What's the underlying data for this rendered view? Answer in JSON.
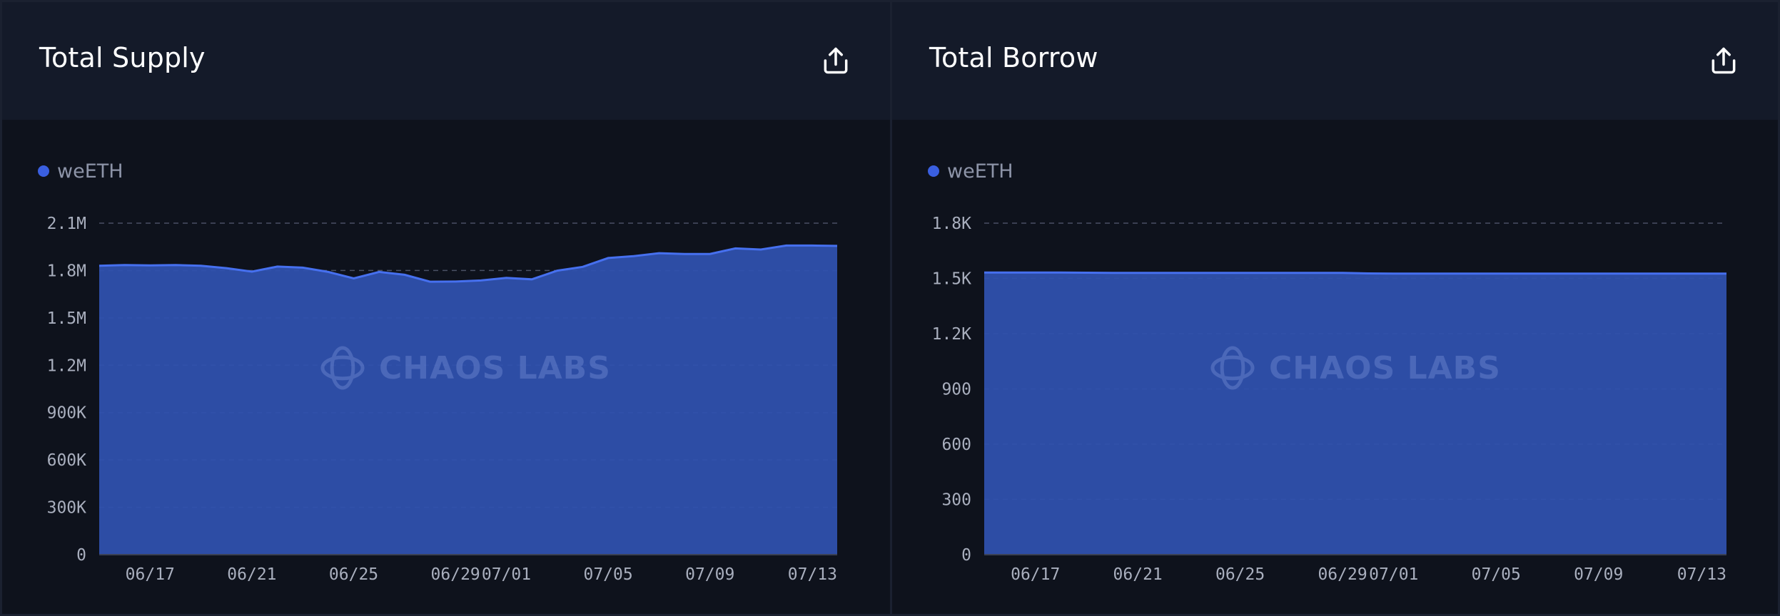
{
  "colors": {
    "fill": "#2f52af",
    "line": "#4670ef",
    "grid": "#4a5064",
    "legend_dot": "#3a5fe0"
  },
  "icons": {
    "export": "share-export-icon",
    "watermark": "chaos-labs-logo-icon"
  },
  "watermark": "CHAOS LABS",
  "chart_data": [
    {
      "type": "area",
      "title": "Total Supply",
      "legend": [
        "weETH"
      ],
      "x_tick_labels": [
        "06/17",
        "06/21",
        "06/25",
        "06/29",
        "07/01",
        "07/05",
        "07/09",
        "07/13"
      ],
      "y_tick_labels": [
        "0",
        "300K",
        "600K",
        "900K",
        "1.2M",
        "1.5M",
        "1.8M",
        "2.1M"
      ],
      "ylim": [
        0,
        2100000
      ],
      "x_range": [
        "06/15",
        "07/14"
      ],
      "grid": true,
      "legend_position": "top-left",
      "series": [
        {
          "name": "weETH",
          "x": [
            "06/15",
            "06/16",
            "06/17",
            "06/18",
            "06/19",
            "06/20",
            "06/21",
            "06/22",
            "06/23",
            "06/24",
            "06/25",
            "06/26",
            "06/27",
            "06/28",
            "06/29",
            "06/30",
            "07/01",
            "07/02",
            "07/03",
            "07/04",
            "07/05",
            "07/06",
            "07/07",
            "07/08",
            "07/09",
            "07/10",
            "07/11",
            "07/12",
            "07/13",
            "07/14"
          ],
          "values": [
            1830000,
            1835000,
            1832000,
            1835000,
            1830000,
            1815000,
            1793000,
            1825000,
            1818000,
            1791000,
            1750000,
            1791000,
            1773000,
            1729000,
            1730000,
            1737000,
            1753000,
            1744000,
            1799000,
            1823000,
            1879000,
            1891000,
            1910000,
            1905000,
            1905000,
            1940000,
            1933000,
            1958000,
            1958000,
            1956000
          ]
        }
      ]
    },
    {
      "type": "area",
      "title": "Total Borrow",
      "legend": [
        "weETH"
      ],
      "x_tick_labels": [
        "06/17",
        "06/21",
        "06/25",
        "06/29",
        "07/01",
        "07/05",
        "07/09",
        "07/13"
      ],
      "y_tick_labels": [
        "0",
        "300",
        "600",
        "900",
        "1.2K",
        "1.5K",
        "1.8K"
      ],
      "ylim": [
        0,
        1800
      ],
      "x_range": [
        "06/15",
        "07/14"
      ],
      "grid": true,
      "legend_position": "top-left",
      "series": [
        {
          "name": "weETH",
          "x": [
            "06/15",
            "06/16",
            "06/17",
            "06/18",
            "06/19",
            "06/20",
            "06/21",
            "06/22",
            "06/23",
            "06/24",
            "06/25",
            "06/26",
            "06/27",
            "06/28",
            "06/29",
            "06/30",
            "07/01",
            "07/02",
            "07/03",
            "07/04",
            "07/05",
            "07/06",
            "07/07",
            "07/08",
            "07/09",
            "07/10",
            "07/11",
            "07/12",
            "07/13",
            "07/14"
          ],
          "values": [
            1532,
            1532,
            1532,
            1532,
            1531,
            1530,
            1530,
            1530,
            1530,
            1530,
            1530,
            1530,
            1530,
            1530,
            1530,
            1527,
            1526,
            1526,
            1526,
            1526,
            1526,
            1526,
            1526,
            1526,
            1526,
            1526,
            1526,
            1526,
            1526,
            1526
          ]
        }
      ]
    }
  ]
}
